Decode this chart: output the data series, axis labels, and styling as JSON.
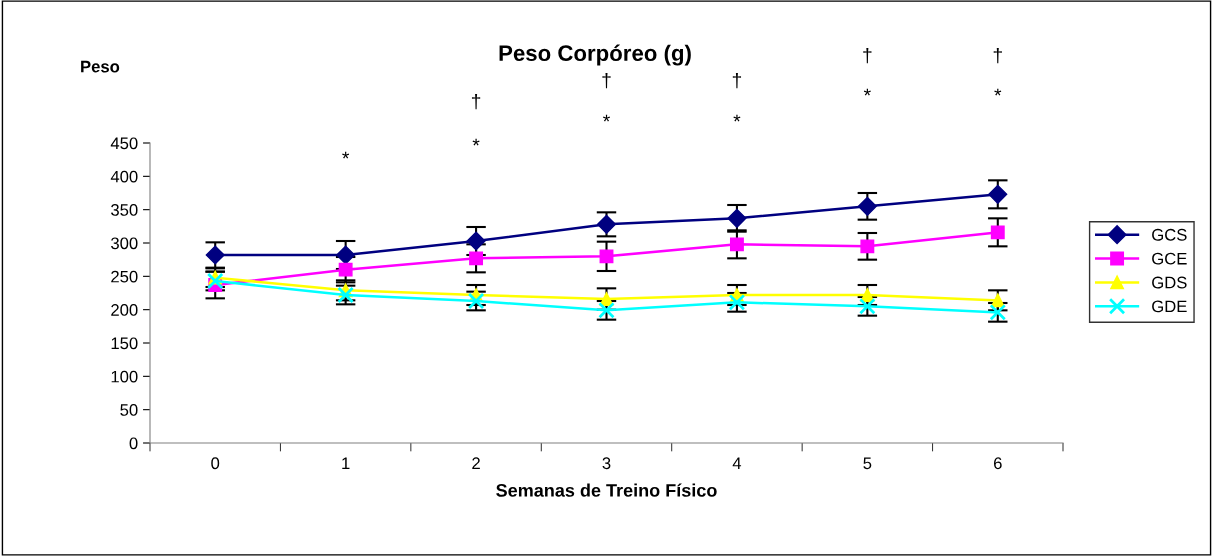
{
  "chart_data": {
    "type": "line",
    "title": "Peso Corpóreo (g)",
    "ylabel": "Peso",
    "xlabel": "Semanas de Treino Físico",
    "categories": [
      "0",
      "1",
      "2",
      "3",
      "4",
      "5",
      "6"
    ],
    "series": [
      {
        "name": "GCS",
        "color": "#000080",
        "marker": "diamond",
        "values": [
          282,
          282,
          303,
          328,
          337,
          355,
          373
        ],
        "errors": [
          19,
          21,
          21,
          18,
          20,
          20,
          21
        ]
      },
      {
        "name": "GCE",
        "color": "#ff00ff",
        "marker": "square",
        "values": [
          237,
          260,
          277,
          280,
          298,
          295,
          316
        ],
        "errors": [
          20,
          19,
          21,
          22,
          21,
          20,
          21
        ]
      },
      {
        "name": "GDS",
        "color": "#ffff00",
        "marker": "triangle",
        "values": [
          248,
          229,
          222,
          216,
          222,
          222,
          214
        ],
        "errors": [
          14,
          15,
          15,
          16,
          15,
          15,
          15
        ]
      },
      {
        "name": "GDE",
        "color": "#00ffff",
        "marker": "cross",
        "values": [
          243,
          222,
          213,
          199,
          211,
          205,
          196
        ],
        "errors": [
          14,
          14,
          14,
          14,
          14,
          14,
          14
        ]
      }
    ],
    "ylim": [
      0,
      450
    ],
    "yticks": [
      0,
      50,
      100,
      150,
      200,
      250,
      300,
      350,
      400,
      450
    ],
    "grid": false,
    "legend": "right",
    "annotations": [
      "*",
      "*",
      "†",
      "*",
      "†",
      "*",
      "†",
      "*",
      "†",
      "*",
      "†"
    ]
  }
}
